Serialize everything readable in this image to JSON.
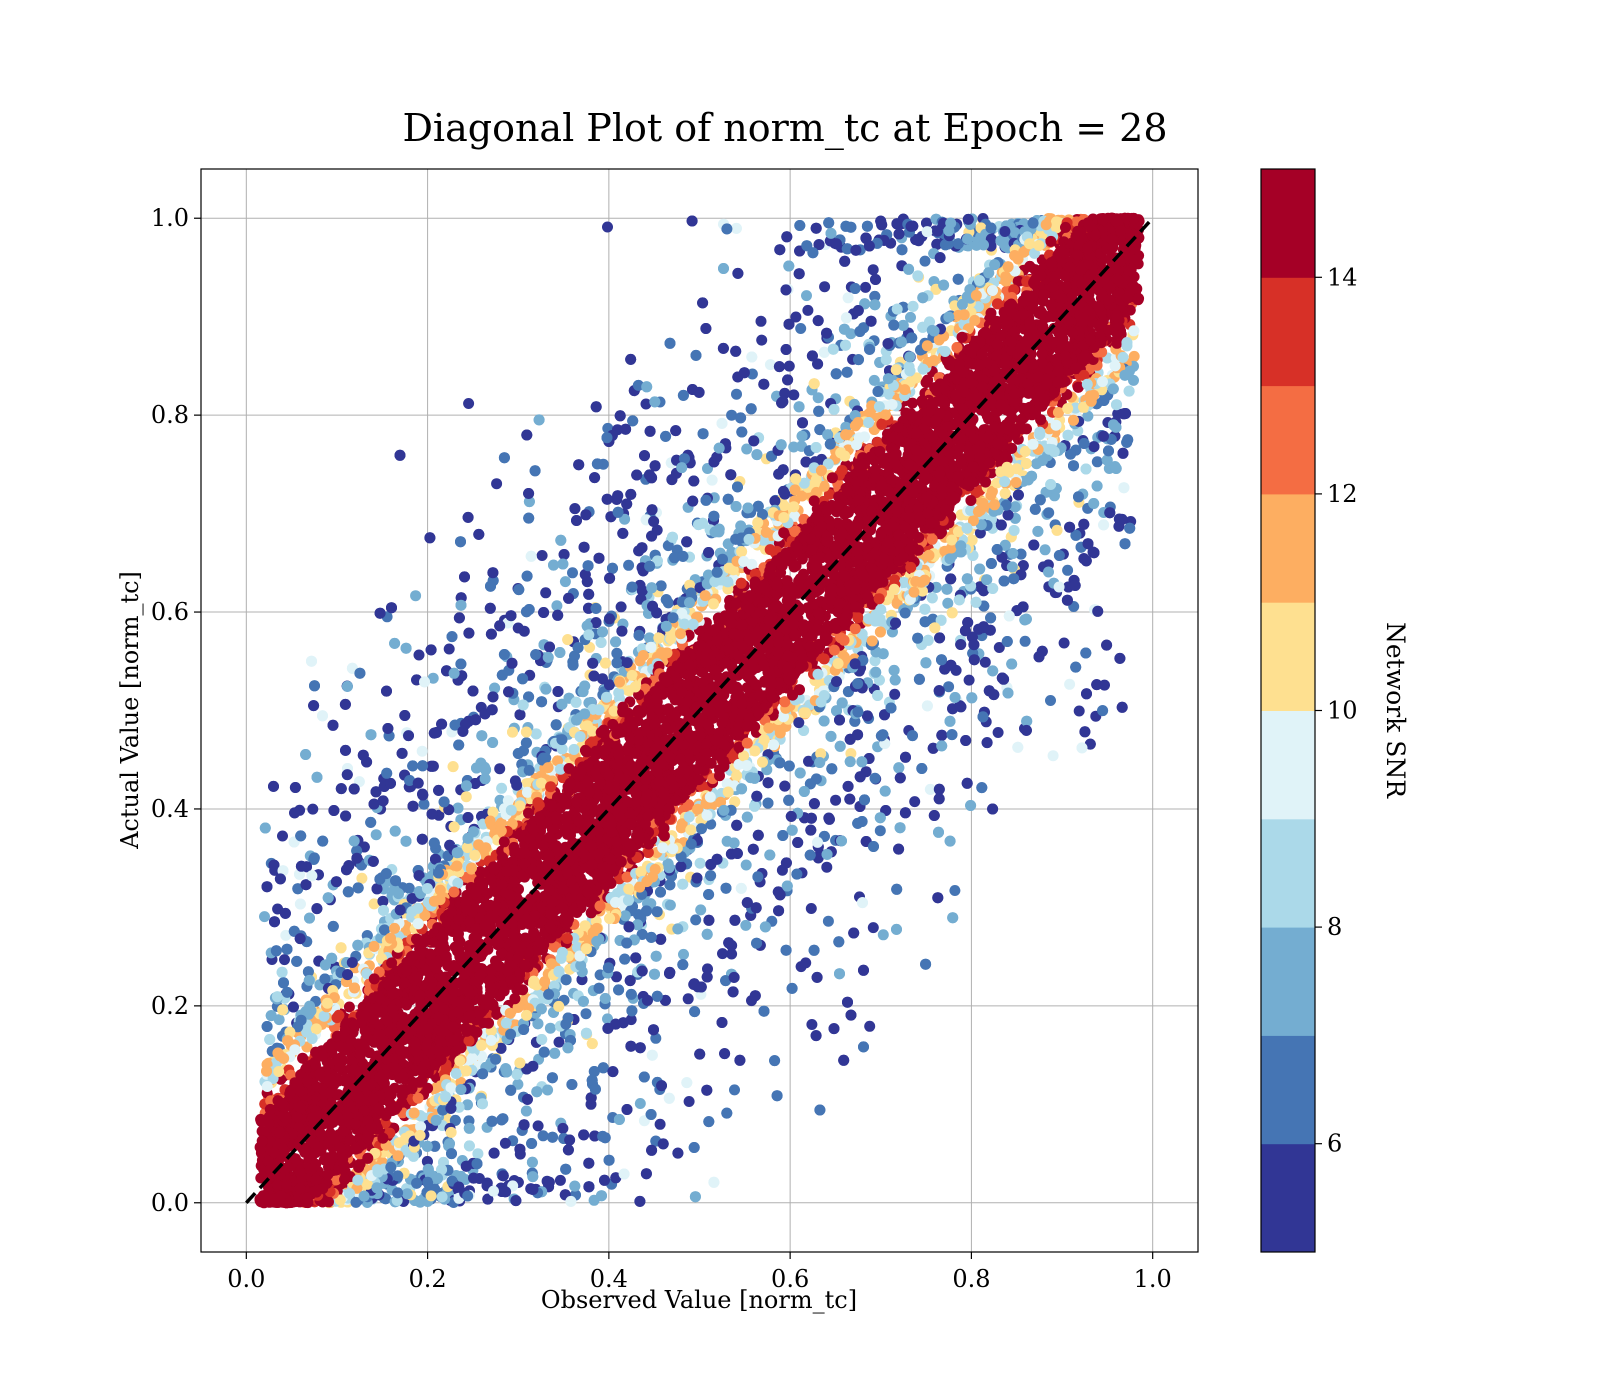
{
  "chart_data": {
    "type": "scatter",
    "title": "Diagonal Plot of norm_tc at Epoch = 28",
    "xlabel": "Observed Value [norm_tc]",
    "ylabel": "Actual Value [norm_tc]",
    "xlim": [
      -0.05,
      1.05
    ],
    "ylim": [
      -0.05,
      1.05
    ],
    "x_ticks": [
      "0.0",
      "0.2",
      "0.4",
      "0.6",
      "0.8",
      "1.0"
    ],
    "y_ticks": [
      "0.0",
      "0.2",
      "0.4",
      "0.6",
      "0.8",
      "1.0"
    ],
    "grid": true,
    "reference_line": {
      "style": "dashed",
      "color": "#000000",
      "from": [
        0,
        0
      ],
      "to": [
        1,
        1
      ]
    },
    "colorbar": {
      "label": "Network SNR",
      "range": [
        5,
        15
      ],
      "ticks": [
        "6",
        "8",
        "10",
        "12",
        "14"
      ],
      "tick_values": [
        6,
        8,
        10,
        12,
        14
      ],
      "colormap": "RdYlBu_r",
      "colors": [
        "#313695",
        "#4575b4",
        "#74add1",
        "#abd9e9",
        "#e0f3f8",
        "#fee090",
        "#fdae61",
        "#f46d43",
        "#d73027",
        "#a50026"
      ]
    },
    "distribution": {
      "description_points": "dense band of high-SNR points along y = x with scattered low-SNR points further from the diagonal",
      "high_snr_band_halfwidth": 0.06,
      "x_range": [
        0.01,
        0.99
      ],
      "y_range": [
        0.0,
        1.0
      ]
    }
  }
}
